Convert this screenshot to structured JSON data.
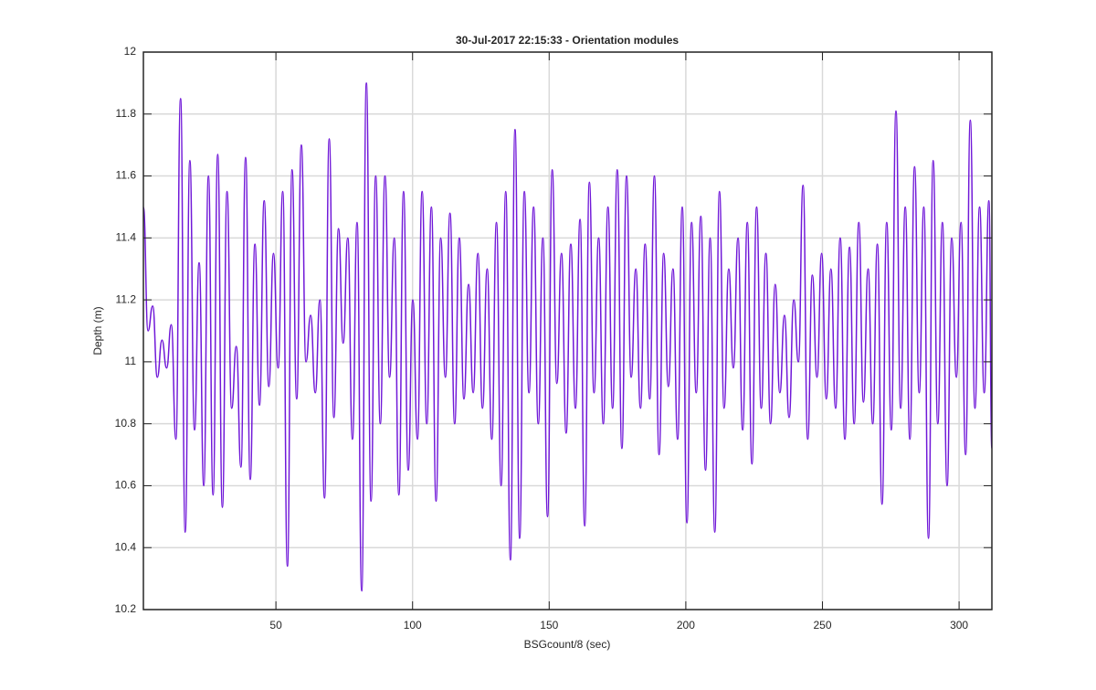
{
  "chart_data": {
    "type": "line",
    "title": "30-Jul-2017 22:15:33 - Orientation modules",
    "x_label": "BSGcount/8 (sec)",
    "y_label": "Depth (m)",
    "xlim": [
      1.5,
      312
    ],
    "ylim": [
      10.2,
      12
    ],
    "xticks": [
      50,
      100,
      150,
      200,
      250,
      300
    ],
    "yticks": [
      10.2,
      10.4,
      10.6,
      10.8,
      11,
      11.2,
      11.4,
      11.6,
      11.8,
      12
    ],
    "grid": true,
    "series": [
      {
        "color": "#7018d8",
        "x": [
          1.5,
          3.2,
          4.9,
          6.6,
          8.3,
          10,
          11.7,
          13.4,
          15.1,
          16.8,
          18.5,
          20.2,
          21.9,
          23.6,
          25.3,
          27,
          28.7,
          30.4,
          32.1,
          33.8,
          35.5,
          37.2,
          38.9,
          40.6,
          42.3,
          44,
          45.7,
          47.4,
          49.1,
          50.8,
          52.5,
          54.2,
          55.9,
          57.6,
          59.3,
          61,
          62.7,
          64.4,
          66.1,
          67.8,
          69.5,
          71.2,
          72.9,
          74.6,
          76.3,
          78,
          79.7,
          81.4,
          83.1,
          84.8,
          86.5,
          88.2,
          89.9,
          91.6,
          93.3,
          95,
          96.7,
          98.4,
          100.1,
          101.8,
          103.5,
          105.2,
          106.9,
          108.6,
          110.3,
          112,
          113.7,
          115.4,
          117.1,
          118.8,
          120.5,
          122.2,
          123.9,
          125.6,
          127.3,
          129,
          130.7,
          132.4,
          134.1,
          135.8,
          137.5,
          139.2,
          140.9,
          142.6,
          144.3,
          146,
          147.7,
          149.4,
          151.1,
          152.8,
          154.5,
          156.2,
          157.9,
          159.6,
          161.3,
          163,
          164.7,
          166.4,
          168.1,
          169.8,
          171.5,
          173.2,
          174.9,
          176.6,
          178.3,
          180,
          181.7,
          183.4,
          185.1,
          186.8,
          188.5,
          190.2,
          191.9,
          193.6,
          195.3,
          197,
          198.7,
          200.4,
          202.1,
          203.8,
          205.5,
          207.2,
          208.9,
          210.6,
          212.3,
          214,
          215.7,
          217.4,
          219.1,
          220.8,
          222.5,
          224.2,
          225.9,
          227.6,
          229.3,
          231,
          232.7,
          234.4,
          236.1,
          237.8,
          239.5,
          241.2,
          242.9,
          244.6,
          246.3,
          248,
          249.7,
          251.4,
          253.1,
          254.8,
          256.5,
          258.2,
          259.9,
          261.6,
          263.3,
          265,
          266.7,
          268.4,
          270.1,
          271.8,
          273.5,
          275.2,
          276.9,
          278.6,
          280.3,
          282,
          283.7,
          285.4,
          287.1,
          288.8,
          290.5,
          292.2,
          293.9,
          295.6,
          297.3,
          299,
          300.7,
          302.4,
          304.1,
          305.8,
          307.5,
          309.2,
          310.9,
          312
        ],
        "values": [
          11.5,
          11.1,
          11.18,
          10.95,
          11.07,
          10.98,
          11.12,
          10.75,
          11.85,
          10.45,
          11.65,
          10.78,
          11.32,
          10.6,
          11.6,
          10.57,
          11.67,
          10.53,
          11.55,
          10.85,
          11.05,
          10.66,
          11.66,
          10.62,
          11.38,
          10.86,
          11.52,
          10.92,
          11.35,
          10.98,
          11.55,
          10.34,
          11.62,
          10.88,
          11.7,
          11.0,
          11.15,
          10.9,
          11.2,
          10.56,
          11.72,
          10.82,
          11.43,
          11.06,
          11.4,
          10.75,
          11.45,
          10.26,
          11.9,
          10.55,
          11.6,
          10.8,
          11.6,
          10.95,
          11.4,
          10.57,
          11.55,
          10.65,
          11.2,
          10.75,
          11.55,
          10.8,
          11.5,
          10.55,
          11.4,
          10.95,
          11.48,
          10.8,
          11.4,
          10.88,
          11.25,
          10.9,
          11.35,
          10.85,
          11.3,
          10.75,
          11.45,
          10.6,
          11.55,
          10.36,
          11.75,
          10.43,
          11.55,
          10.9,
          11.5,
          10.8,
          11.4,
          10.5,
          11.62,
          10.93,
          11.35,
          10.77,
          11.38,
          10.85,
          11.46,
          10.47,
          11.58,
          10.9,
          11.4,
          10.8,
          11.5,
          10.85,
          11.62,
          10.72,
          11.6,
          10.95,
          11.3,
          10.85,
          11.38,
          10.88,
          11.6,
          10.7,
          11.35,
          10.92,
          11.3,
          10.75,
          11.5,
          10.48,
          11.45,
          10.9,
          11.47,
          10.65,
          11.4,
          10.45,
          11.55,
          10.85,
          11.3,
          10.98,
          11.4,
          10.78,
          11.45,
          10.67,
          11.5,
          10.85,
          11.35,
          10.8,
          11.25,
          10.9,
          11.15,
          10.82,
          11.2,
          11.0,
          11.57,
          10.75,
          11.28,
          10.95,
          11.35,
          10.88,
          11.3,
          10.85,
          11.4,
          10.75,
          11.37,
          10.8,
          11.45,
          10.87,
          11.3,
          10.8,
          11.38,
          10.54,
          11.45,
          10.78,
          11.81,
          10.85,
          11.5,
          10.75,
          11.63,
          10.9,
          11.5,
          10.43,
          11.65,
          10.8,
          11.45,
          10.6,
          11.4,
          10.95,
          11.45,
          10.7,
          11.78,
          10.85,
          11.5,
          10.9,
          11.52,
          10.72
        ]
      }
    ]
  }
}
